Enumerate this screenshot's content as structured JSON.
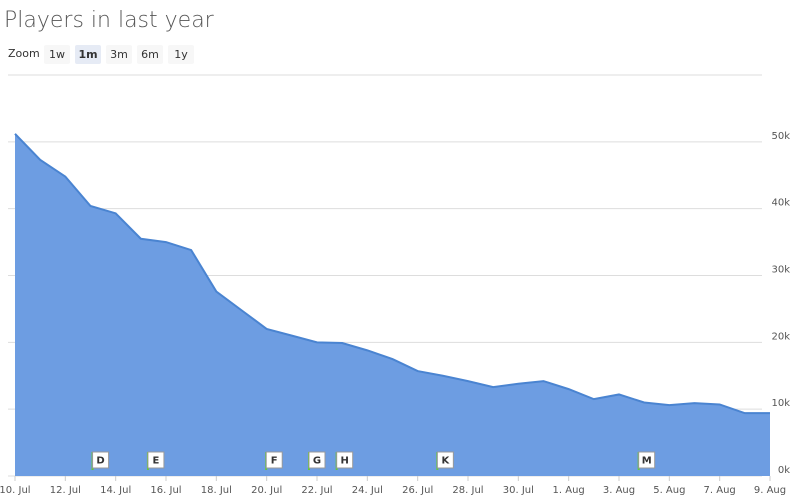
{
  "chart_data": {
    "type": "area",
    "title": "Players in last year",
    "zoom": {
      "label": "Zoom",
      "options": [
        "1w",
        "1m",
        "3m",
        "6m",
        "1y"
      ],
      "selected": 1
    },
    "categories": [
      "10. Jul",
      null,
      "12. Jul",
      null,
      "14. Jul",
      null,
      "16. Jul",
      null,
      "18. Jul",
      null,
      "20. Jul",
      null,
      "22. Jul",
      null,
      "24. Jul",
      null,
      "26. Jul",
      null,
      "28. Jul",
      null,
      "30. Jul",
      null,
      "1. Aug",
      null,
      "3. Aug",
      null,
      "5. Aug",
      null,
      "7. Aug",
      null,
      "9. Aug"
    ],
    "values": [
      51200,
      47300,
      44800,
      40400,
      39300,
      35500,
      35000,
      33800,
      27600,
      24800,
      22000,
      21000,
      20000,
      19900,
      18800,
      17500,
      15700,
      15000,
      14200,
      13300,
      13800,
      14200,
      13000,
      11500,
      12200,
      11000,
      10600,
      10900,
      10700,
      9400,
      9400
    ],
    "color": "#6d9de2",
    "line_color": "#4a84d1",
    "ylim": [
      0,
      60000
    ],
    "yticks": [
      {
        "value": 0,
        "label": "0k"
      },
      {
        "value": 10000,
        "label": "10k"
      },
      {
        "value": 20000,
        "label": "20k"
      },
      {
        "value": 30000,
        "label": "30k"
      },
      {
        "value": 40000,
        "label": "40k"
      },
      {
        "value": 50000,
        "label": "50k"
      }
    ],
    "grid": true,
    "flags": [
      {
        "text": "D",
        "x": 3.4
      },
      {
        "text": "E",
        "x": 5.6
      },
      {
        "text": "F",
        "x": 10.3
      },
      {
        "text": "G",
        "x": 12.0
      },
      {
        "text": "H",
        "x": 13.1
      },
      {
        "text": "K",
        "x": 17.1
      },
      {
        "text": "M",
        "x": 25.1
      }
    ]
  }
}
